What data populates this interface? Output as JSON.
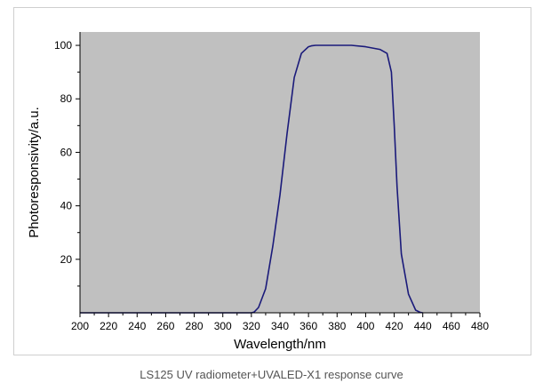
{
  "caption": "LS125 UV radiometer+UVALED-X1 response curve",
  "colors": {
    "plot_background": "#c0c0c0",
    "curve": "#1a1a7a",
    "axis": "#000000"
  },
  "chart_data": {
    "type": "line",
    "title": "",
    "xlabel": "Wavelength/nm",
    "ylabel": "Photoresponsivity/a.u.",
    "xlim": [
      200,
      480
    ],
    "ylim": [
      0,
      105
    ],
    "x_ticks": [
      200,
      220,
      240,
      260,
      280,
      300,
      320,
      340,
      360,
      380,
      400,
      420,
      440,
      460,
      480
    ],
    "y_ticks": [
      20,
      40,
      60,
      80,
      100
    ],
    "grid": false,
    "legend": "none",
    "series": [
      {
        "x": [
          200,
          300,
          320,
          322,
          325,
          330,
          335,
          340,
          345,
          350,
          355,
          360,
          362,
          365,
          370,
          380,
          390,
          400,
          405,
          410,
          415,
          418,
          420,
          422,
          425,
          430,
          435,
          438,
          440
        ],
        "values": [
          0,
          0,
          0,
          0.3,
          2,
          9,
          25,
          44,
          67,
          88,
          97,
          99.5,
          99.8,
          100,
          100,
          100,
          100,
          99.5,
          99,
          98.5,
          97,
          90,
          70,
          47,
          22,
          7,
          1,
          0.2,
          0
        ]
      }
    ]
  }
}
